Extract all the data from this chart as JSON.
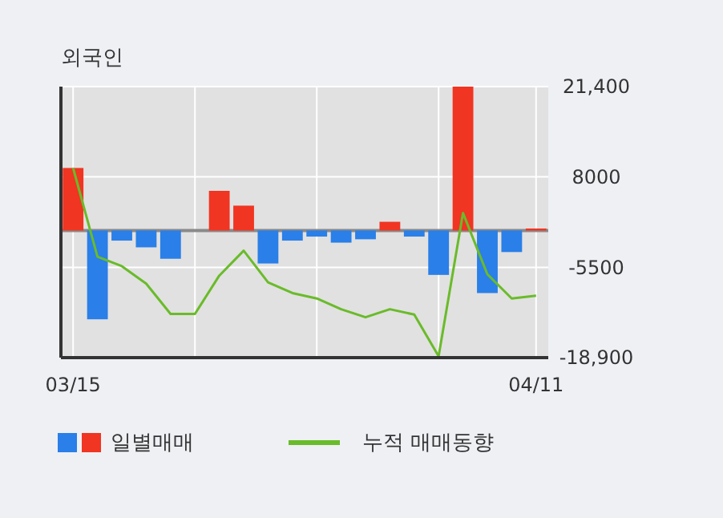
{
  "chart_data": {
    "type": "bar",
    "title": "외국인",
    "categories": [
      "03/15",
      null,
      null,
      null,
      null,
      null,
      null,
      null,
      null,
      null,
      null,
      null,
      null,
      null,
      null,
      null,
      null,
      null,
      null,
      "04/11"
    ],
    "series": [
      {
        "name": "일별매매",
        "colors": [
          "#f03522",
          "#2a7fe8",
          "#2a7fe8",
          "#2a7fe8",
          "#2a7fe8",
          "#2a7fe8",
          "#f03522",
          "#f03522",
          "#2a7fe8",
          "#2a7fe8",
          "#2a7fe8",
          "#2a7fe8",
          "#2a7fe8",
          "#f03522",
          "#2a7fe8",
          "#2a7fe8",
          "#f03522",
          "#2a7fe8",
          "#2a7fe8",
          "#f03522"
        ],
        "values": [
          9300,
          -13200,
          -1500,
          -2500,
          -4200,
          null,
          5900,
          3700,
          -4900,
          -1500,
          -900,
          -1800,
          -1300,
          1300,
          -900,
          -6600,
          21400,
          -9300,
          -3200,
          300
        ]
      },
      {
        "name": "누적 매매동향",
        "type": "line",
        "color": "#6abb2a",
        "values": [
          9300,
          -3900,
          -5300,
          -7900,
          -12400,
          -12400,
          -6700,
          -3000,
          -7700,
          -9300,
          -10100,
          -11700,
          -12900,
          -11700,
          -12500,
          -18700,
          2600,
          -6500,
          -10100,
          -9700
        ]
      }
    ],
    "ylim": [
      -18900,
      21400
    ],
    "yticks": [
      {
        "value": 21400,
        "label": "21,400"
      },
      8000,
      -5500,
      {
        "value": -18900,
        "label": "-18,900"
      }
    ],
    "grid": true,
    "legend": "bottom"
  }
}
